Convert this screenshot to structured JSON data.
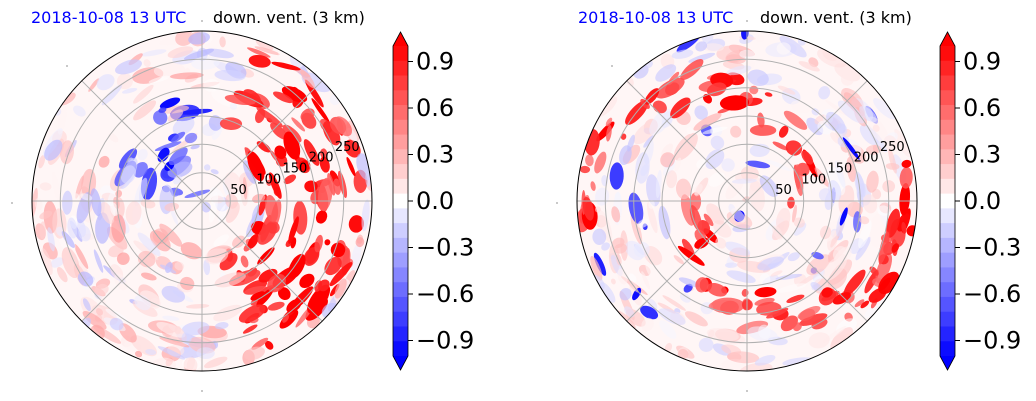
{
  "colors": {
    "negative_max": "#0000ff",
    "zero": "#ffffff",
    "positive_max": "#ff0000",
    "date_title": "#0000ff",
    "grid": "#b0b0b0"
  },
  "chart_data": [
    {
      "type": "heatmap",
      "projection": "polar",
      "title_date": "2018-10-08 13 UTC",
      "title_variable": "down. vent. (3 km)",
      "radial_ticks": [
        "50",
        "100",
        "150",
        "200",
        "250"
      ],
      "radial_tick_values": [
        50,
        100,
        150,
        200,
        250
      ],
      "angular_grid_step_deg": 45,
      "colorbar": {
        "range": [
          -1.0,
          1.0
        ],
        "levels": 21,
        "extend": "both",
        "colormap": "bwr",
        "tick_values": [
          0.9,
          0.6,
          0.3,
          0.0,
          -0.3,
          -0.6,
          -0.9
        ],
        "tick_labels": [
          "0.9",
          "0.6",
          "0.3",
          "0.0",
          "−0.3",
          "−0.6",
          "−0.9"
        ]
      }
    },
    {
      "type": "heatmap",
      "projection": "polar",
      "title_date": "2018-10-08 13 UTC",
      "title_variable": "down. vent. (3 km)",
      "radial_ticks": [
        "50",
        "100",
        "150",
        "200",
        "250"
      ],
      "radial_tick_values": [
        50,
        100,
        150,
        200,
        250
      ],
      "angular_grid_step_deg": 45,
      "colorbar": {
        "range": [
          -1.0,
          1.0
        ],
        "levels": 21,
        "extend": "both",
        "colormap": "bwr",
        "tick_values": [
          0.9,
          0.6,
          0.3,
          0.0,
          -0.3,
          -0.6,
          -0.9
        ],
        "tick_labels": [
          "0.9",
          "0.6",
          "0.3",
          "0.0",
          "−0.3",
          "−0.6",
          "−0.9"
        ]
      }
    }
  ]
}
